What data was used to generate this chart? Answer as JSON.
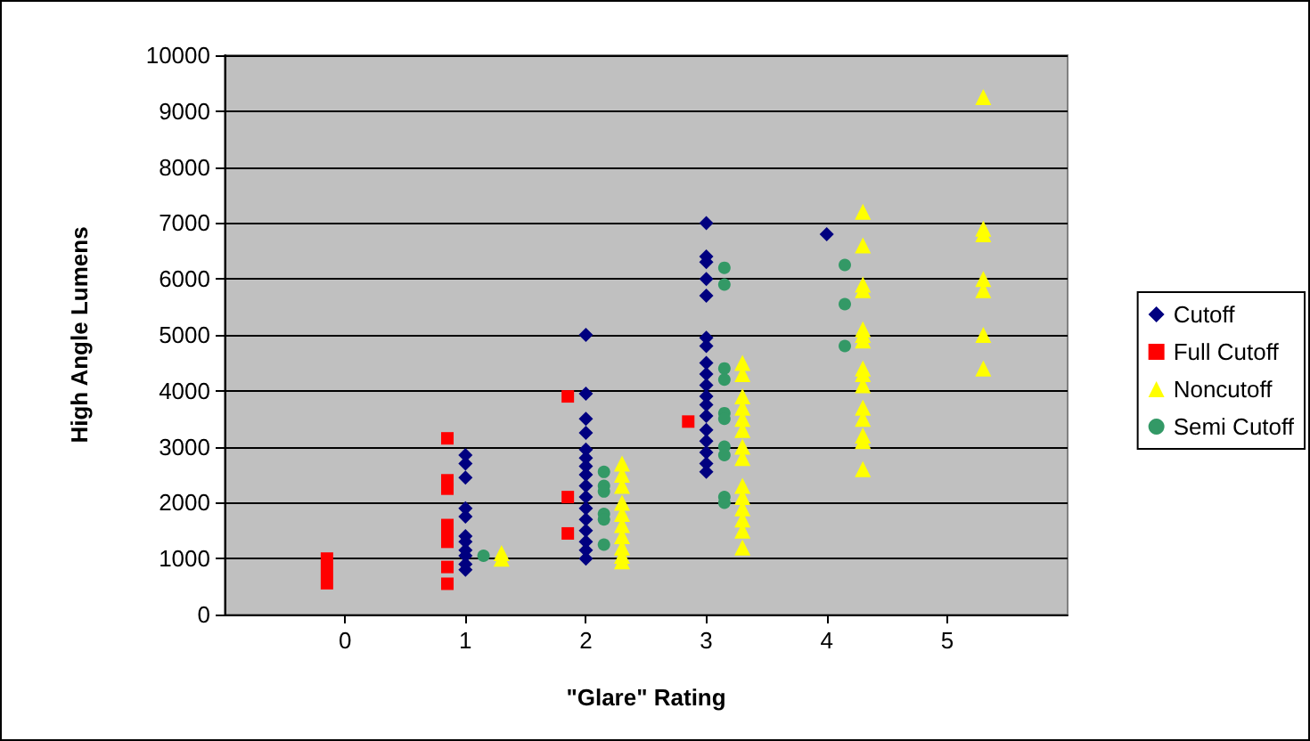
{
  "chart_data": {
    "type": "scatter",
    "xlabel": "\"Glare\" Rating",
    "ylabel": "High Angle Lumens",
    "xlim": [
      -1,
      6
    ],
    "xticks": [
      0,
      1,
      2,
      3,
      4,
      5
    ],
    "ylim": [
      0,
      10000
    ],
    "yticks": [
      0,
      1000,
      2000,
      3000,
      4000,
      5000,
      6000,
      7000,
      8000,
      9000,
      10000
    ],
    "grid": "y",
    "legend": "right",
    "series": [
      {
        "name": "Cutoff",
        "color": "#000080",
        "marker": "diamond",
        "x": [
          1,
          1,
          1,
          1,
          1,
          1,
          1,
          1,
          1,
          1,
          1,
          2,
          2,
          2,
          2,
          2,
          2,
          2,
          2,
          2,
          2,
          2,
          2,
          2,
          2,
          2,
          2,
          3,
          3,
          3,
          3,
          3,
          3,
          3,
          3,
          3,
          3,
          3,
          3,
          3,
          3,
          3,
          3,
          3,
          3,
          4
        ],
        "values": [
          2850,
          2700,
          2450,
          1900,
          1750,
          1400,
          1300,
          1150,
          1050,
          900,
          800,
          5000,
          3950,
          3500,
          3250,
          2950,
          2800,
          2650,
          2500,
          2300,
          2100,
          1900,
          1700,
          1500,
          1300,
          1150,
          1000,
          7000,
          6400,
          6300,
          6000,
          5700,
          4950,
          4800,
          4500,
          4300,
          4100,
          3900,
          3750,
          3550,
          3300,
          3100,
          2900,
          2700,
          2550,
          6800
        ]
      },
      {
        "name": "Full Cutoff",
        "color": "#ff0000",
        "marker": "square",
        "x": [
          -0.15,
          -0.15,
          -0.15,
          0.85,
          0.85,
          0.85,
          0.85,
          0.85,
          0.85,
          0.85,
          0.85,
          1.85,
          1.85,
          1.85,
          2.85
        ],
        "values": [
          1000,
          780,
          560,
          3150,
          2400,
          2250,
          1600,
          1450,
          1300,
          850,
          550,
          3900,
          2100,
          1450,
          3450
        ]
      },
      {
        "name": "Noncutoff",
        "color": "#ffff00",
        "marker": "triangle",
        "x": [
          1.3,
          1.3,
          2.3,
          2.3,
          2.3,
          2.3,
          2.3,
          2.3,
          2.3,
          2.3,
          2.3,
          2.3,
          3.3,
          3.3,
          3.3,
          3.3,
          3.3,
          3.3,
          3.3,
          3.3,
          3.3,
          3.3,
          3.3,
          3.3,
          3.3,
          3.3,
          4.3,
          4.3,
          4.3,
          4.3,
          4.3,
          4.3,
          4.3,
          4.3,
          4.3,
          4.3,
          4.3,
          4.3,
          4.3,
          4.3,
          4.3,
          5.3,
          5.3,
          5.3,
          5.3,
          5.3,
          5.3,
          5.3
        ],
        "values": [
          1100,
          1000,
          2700,
          2500,
          2300,
          2000,
          1800,
          1600,
          1400,
          1200,
          1050,
          950,
          4500,
          4300,
          3900,
          3700,
          3500,
          3300,
          3000,
          2800,
          2300,
          2100,
          1900,
          1700,
          1500,
          1200,
          7200,
          6600,
          5900,
          5800,
          5100,
          5000,
          4900,
          4400,
          4300,
          4100,
          3700,
          3500,
          3200,
          3100,
          2600,
          9250,
          6900,
          6800,
          6000,
          5800,
          5000,
          4400
        ]
      },
      {
        "name": "Semi Cutoff",
        "color": "#339966",
        "marker": "circle",
        "x": [
          1.15,
          2.15,
          2.15,
          2.15,
          2.15,
          2.15,
          2.15,
          3.15,
          3.15,
          3.15,
          3.15,
          3.15,
          3.15,
          3.15,
          3.15,
          3.15,
          3.15,
          4.15,
          4.15,
          4.15
        ],
        "values": [
          1050,
          2550,
          2300,
          2200,
          1800,
          1700,
          1250,
          6200,
          5900,
          4400,
          4200,
          3600,
          3500,
          3000,
          2850,
          2100,
          2000,
          6250,
          5550,
          4800
        ]
      }
    ]
  }
}
